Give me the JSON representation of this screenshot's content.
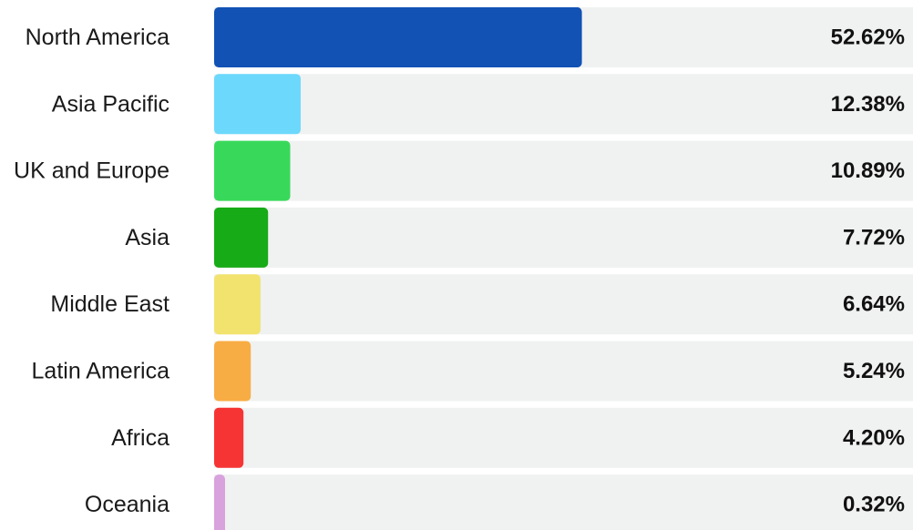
{
  "chart_data": {
    "type": "bar",
    "orientation": "horizontal",
    "categories": [
      "North America",
      "Asia Pacific",
      "UK and Europe",
      "Asia",
      "Middle East",
      "Latin America",
      "Africa",
      "Oceania"
    ],
    "values": [
      52.62,
      12.38,
      10.89,
      7.72,
      6.64,
      5.24,
      4.2,
      0.32
    ],
    "value_labels": [
      "52.62%",
      "12.38%",
      "10.89%",
      "7.72%",
      "6.64%",
      "5.24%",
      "4.20%",
      "0.32%"
    ],
    "colors": [
      "#1152b4",
      "#6cd8fc",
      "#38d95a",
      "#17ab17",
      "#f2e36e",
      "#f7ad44",
      "#f63434",
      "#d8a2dc"
    ],
    "track_color": "#f0f1f1",
    "xlim": [
      0,
      100
    ],
    "grid": false,
    "legend": "none"
  }
}
